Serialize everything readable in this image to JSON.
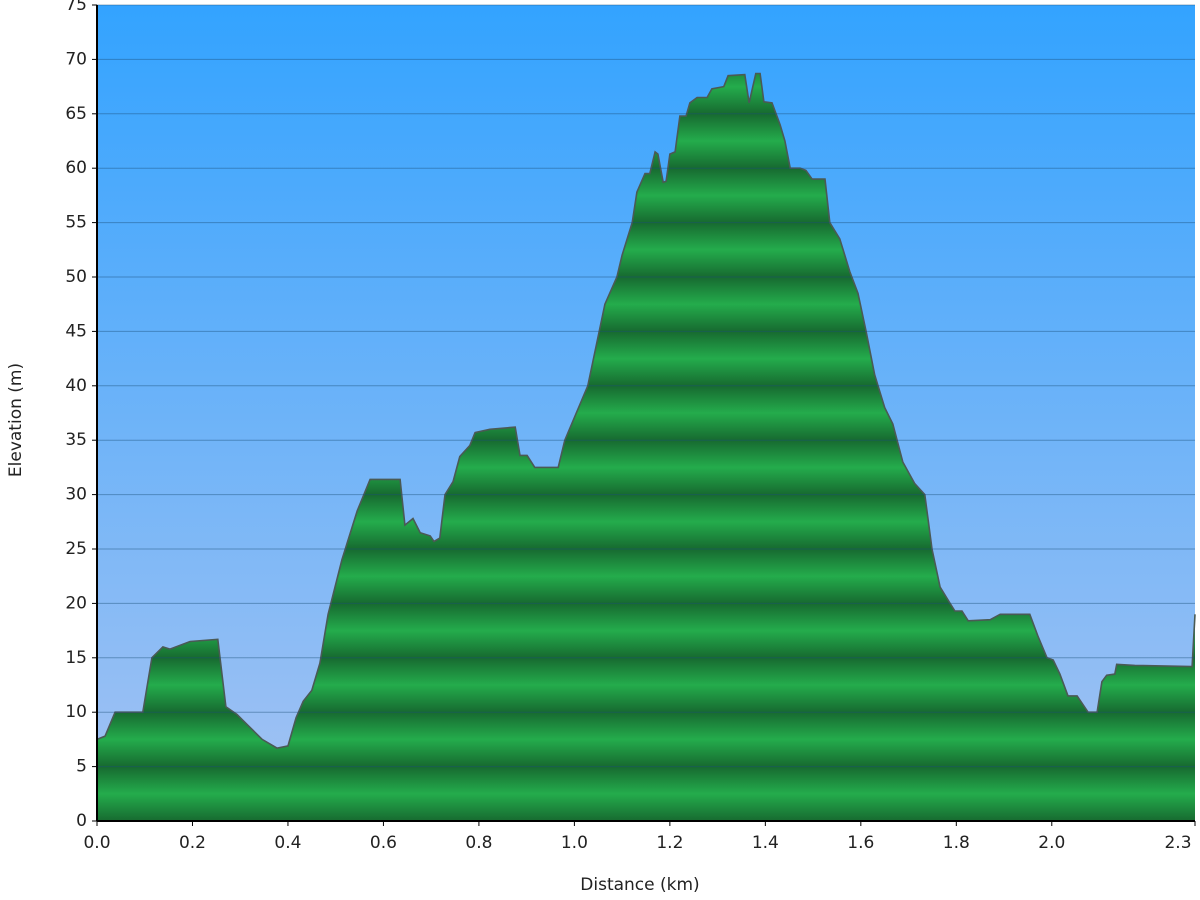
{
  "chart_data": {
    "type": "area",
    "xlabel": "Distance   (km)",
    "ylabel": "Elevation (m)",
    "x": [
      0,
      0.017,
      0.038,
      0.096,
      0.115,
      0.138,
      0.153,
      0.195,
      0.253,
      0.27,
      0.293,
      0.316,
      0.346,
      0.377,
      0.4,
      0.417,
      0.432,
      0.45,
      0.467,
      0.484,
      0.513,
      0.545,
      0.572,
      0.593,
      0.635,
      0.645,
      0.662,
      0.677,
      0.698,
      0.706,
      0.718,
      0.729,
      0.746,
      0.76,
      0.781,
      0.792,
      0.823,
      0.876,
      0.886,
      0.901,
      0.917,
      0.966,
      0.98,
      1.028,
      1.064,
      1.089,
      1.1,
      1.121,
      1.131,
      1.148,
      1.158,
      1.169,
      1.175,
      1.186,
      1.192,
      1.2,
      1.211,
      1.221,
      1.234,
      1.242,
      1.257,
      1.278,
      1.288,
      1.313,
      1.322,
      1.357,
      1.366,
      1.38,
      1.389,
      1.397,
      1.414,
      1.431,
      1.441,
      1.452,
      1.473,
      1.485,
      1.498,
      1.525,
      1.535,
      1.556,
      1.577,
      1.594,
      1.611,
      1.629,
      1.65,
      1.667,
      1.688,
      1.713,
      1.734,
      1.749,
      1.766,
      1.787,
      1.797,
      1.812,
      1.825,
      1.871,
      1.892,
      1.954,
      1.971,
      1.99,
      2.003,
      2.017,
      2.034,
      2.053,
      2.076,
      2.095,
      2.105,
      2.115,
      2.132,
      2.136,
      2.174,
      2.294,
      2.3
    ],
    "values": [
      7.5,
      7.8,
      10,
      10,
      15,
      16,
      15.8,
      16.5,
      16.7,
      10.5,
      9.8,
      8.8,
      7.5,
      6.7,
      6.9,
      9.5,
      11,
      12,
      14.5,
      19,
      24,
      28.5,
      31.4,
      31.4,
      31.4,
      27.2,
      27.8,
      26.5,
      26.2,
      25.7,
      26,
      30,
      31.2,
      33.5,
      34.5,
      35.7,
      36,
      36.2,
      33.6,
      33.6,
      32.5,
      32.5,
      35,
      40,
      47.5,
      50,
      52,
      55,
      57.8,
      59.5,
      59.5,
      61.5,
      61.3,
      58.7,
      58.8,
      61.3,
      61.5,
      64.8,
      64.8,
      66,
      66.5,
      66.5,
      67.3,
      67.5,
      68.5,
      68.6,
      66,
      68.7,
      68.7,
      66.1,
      66,
      64,
      62.5,
      60,
      60,
      59.8,
      59,
      59,
      55,
      53.5,
      50.5,
      48.5,
      45,
      41,
      38,
      36.5,
      33,
      31,
      30,
      25,
      21.5,
      20,
      19.3,
      19.3,
      18.4,
      18.5,
      19,
      19,
      17,
      15,
      14.8,
      13.5,
      11.5,
      11.5,
      10,
      10,
      12.8,
      13.4,
      13.5,
      14.4,
      14.3,
      14.2,
      19
    ],
    "color": "#22a84a",
    "xlim": [
      0,
      2.3
    ],
    "ylim": [
      0,
      75
    ],
    "xticks": [
      {
        "value": 0,
        "label": "0.0"
      },
      0.2,
      0.4,
      0.6,
      0.8,
      {
        "value": 1,
        "label": "1.0"
      },
      1.2,
      1.4,
      1.6,
      1.8,
      {
        "value": 2,
        "label": "2.0"
      },
      2.3
    ],
    "yticks": [
      0,
      5,
      10,
      15,
      20,
      25,
      30,
      35,
      40,
      45,
      50,
      55,
      60,
      65,
      70,
      75
    ],
    "grid": true
  }
}
